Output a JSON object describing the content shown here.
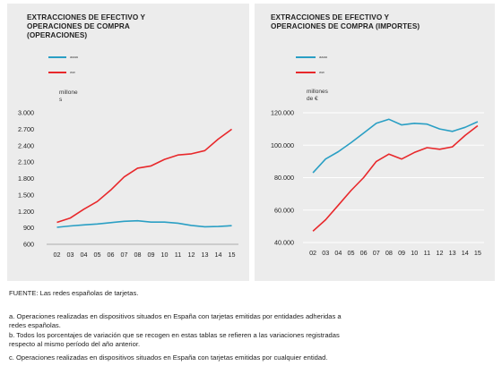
{
  "charts": [
    {
      "title": "EXTRACCIONES DE EFECTIVO Y\nOPERACIONES DE COMPRA\n(OPERACIONES)",
      "unit_label": "millone\ns",
      "legend": [
        {
          "label": "aaaa",
          "color": "#2a9fc4"
        },
        {
          "label": "ww",
          "color": "#e8282b"
        }
      ]
    },
    {
      "title": "EXTRACCIONES DE EFECTIVO Y\nOPERACIONES DE COMPRA (IMPORTES)",
      "unit_label": "millones\nde €",
      "legend": [
        {
          "label": "aaaa",
          "color": "#2a9fc4"
        },
        {
          "label": "ww",
          "color": "#e8282b"
        }
      ]
    }
  ],
  "chart_data": [
    {
      "type": "line",
      "title": "EXTRACCIONES DE EFECTIVO Y OPERACIONES DE COMPRA (OPERACIONES)",
      "ylabel": "millone s",
      "categories": [
        "02",
        "03",
        "04",
        "05",
        "06",
        "07",
        "08",
        "09",
        "10",
        "11",
        "12",
        "13",
        "14",
        "15"
      ],
      "ylim": [
        600,
        3000
      ],
      "yticks": [
        "3.000",
        "2.700",
        "2.400",
        "2.100",
        "1.800",
        "1.500",
        "1.200",
        "900",
        "600"
      ],
      "ytick_values": [
        3000,
        2700,
        2400,
        2100,
        1800,
        1500,
        1200,
        900,
        600
      ],
      "grid": false,
      "legend_position": "top-left",
      "series": [
        {
          "color": "#2a9fc4",
          "values": [
            910,
            935,
            955,
            970,
            995,
            1020,
            1030,
            1005,
            1005,
            985,
            945,
            920,
            925,
            940
          ]
        },
        {
          "color": "#e8282b",
          "values": [
            1000,
            1080,
            1240,
            1380,
            1590,
            1830,
            1990,
            2030,
            2150,
            2230,
            2250,
            2310,
            2520,
            2700
          ]
        }
      ]
    },
    {
      "type": "line",
      "title": "EXTRACCIONES DE EFECTIVO Y OPERACIONES DE COMPRA (IMPORTES)",
      "ylabel": "millones de €",
      "categories": [
        "02",
        "03",
        "04",
        "05",
        "06",
        "07",
        "08",
        "09",
        "10",
        "11",
        "12",
        "13",
        "14",
        "15"
      ],
      "ylim": [
        40000,
        120000
      ],
      "yticks": [
        "120.000",
        "100.000",
        "80.000",
        "60.000",
        "40.000"
      ],
      "ytick_values": [
        120000,
        100000,
        80000,
        60000,
        40000
      ],
      "grid": true,
      "legend_position": "top-left",
      "series": [
        {
          "color": "#2a9fc4",
          "values": [
            83000,
            91500,
            96000,
            101500,
            107500,
            113500,
            116000,
            112500,
            113500,
            113000,
            110000,
            108500,
            111000,
            114500
          ]
        },
        {
          "color": "#e8282b",
          "values": [
            47000,
            54000,
            63000,
            72000,
            80000,
            90000,
            94500,
            91500,
            95500,
            98500,
            97500,
            99000,
            106000,
            112000
          ]
        }
      ]
    }
  ],
  "notes": {
    "source": "FUENTE: Las redes españolas de tarjetas.",
    "note_a": "a. Operaciones realizadas en dispositivos situados en España con tarjetas emitidas por entidades adheridas a\nredes españolas.",
    "note_b": "b. Todos los porcentajes de variación que se recogen en estas tablas se refieren a las variaciones registradas\nrespecto al mismo período del año anterior.",
    "note_c": "c. Operaciones realizadas en dispositivos situados en España con tarjetas emitidas por cualquier entidad."
  }
}
